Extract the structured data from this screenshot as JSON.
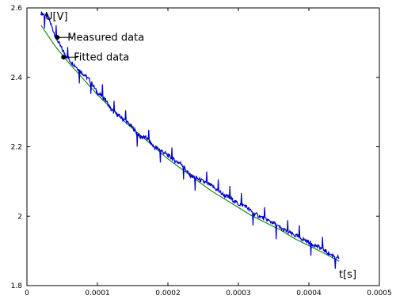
{
  "chart_data": {
    "type": "line",
    "title": "",
    "xlabel": "t[s]",
    "ylabel": "U[V]",
    "xlim": [
      0,
      0.0005
    ],
    "ylim": [
      1.8,
      2.6
    ],
    "x_ticks": [
      {
        "value": 0,
        "label": "0"
      },
      {
        "value": 0.0001,
        "label": "0.0001"
      },
      {
        "value": 0.0002,
        "label": "0.0002"
      },
      {
        "value": 0.0003,
        "label": "0.0003"
      },
      {
        "value": 0.0004,
        "label": "0.0004"
      },
      {
        "value": 0.0005,
        "label": "0.0005"
      }
    ],
    "y_ticks": [
      {
        "value": 1.8,
        "label": "1.8"
      },
      {
        "value": 2.0,
        "label": "2"
      },
      {
        "value": 2.2,
        "label": "2.2"
      },
      {
        "value": 2.4,
        "label": "2.4"
      },
      {
        "value": 2.6,
        "label": "2.6"
      }
    ],
    "grid": false,
    "series": [
      {
        "name": "Measured data",
        "color": "#0000cc",
        "x": [
          2e-05,
          3e-05,
          4e-05,
          5e-05,
          6e-05,
          7e-05,
          8e-05,
          9e-05,
          0.0001,
          0.00011,
          0.00012,
          0.00013,
          0.00014,
          0.00015,
          0.00016,
          0.00017,
          0.00018,
          0.00019,
          0.0002,
          0.00021,
          0.00022,
          0.00023,
          0.00024,
          0.00025,
          0.00026,
          0.00027,
          0.00028,
          0.00029,
          0.0003,
          0.00031,
          0.00032,
          0.00033,
          0.00034,
          0.00035,
          0.00036,
          0.00037,
          0.00038,
          0.00039,
          0.0004,
          0.00041,
          0.00042,
          0.00043,
          0.000443
        ],
        "y": [
          2.585,
          2.575,
          2.52,
          2.48,
          2.45,
          2.43,
          2.41,
          2.39,
          2.355,
          2.34,
          2.305,
          2.29,
          2.275,
          2.255,
          2.23,
          2.225,
          2.2,
          2.19,
          2.175,
          2.16,
          2.15,
          2.12,
          2.11,
          2.1,
          2.09,
          2.075,
          2.06,
          2.05,
          2.035,
          2.03,
          2.01,
          2.0,
          1.99,
          1.98,
          1.965,
          1.955,
          1.945,
          1.935,
          1.925,
          1.915,
          1.905,
          1.89,
          1.88
        ]
      },
      {
        "name": "Fitted data",
        "color": "#008800",
        "x": [
          2e-05,
          4e-05,
          6e-05,
          8e-05,
          0.0001,
          0.00012,
          0.00014,
          0.00016,
          0.00018,
          0.0002,
          0.00022,
          0.00024,
          0.00026,
          0.00028,
          0.0003,
          0.00032,
          0.00034,
          0.00036,
          0.00038,
          0.0004,
          0.00042,
          0.000443
        ],
        "y": [
          2.55,
          2.49,
          2.44,
          2.395,
          2.35,
          2.31,
          2.27,
          2.235,
          2.2,
          2.165,
          2.135,
          2.105,
          2.075,
          2.05,
          2.025,
          2.0,
          1.98,
          1.96,
          1.935,
          1.915,
          1.895,
          1.87
        ]
      }
    ],
    "annotations": [
      {
        "label": "Measured data",
        "series": 0,
        "x": 4.3e-05,
        "y": 2.515
      },
      {
        "label": "Fitted data",
        "series": 1,
        "x": 5.2e-05,
        "y": 2.458
      }
    ]
  }
}
